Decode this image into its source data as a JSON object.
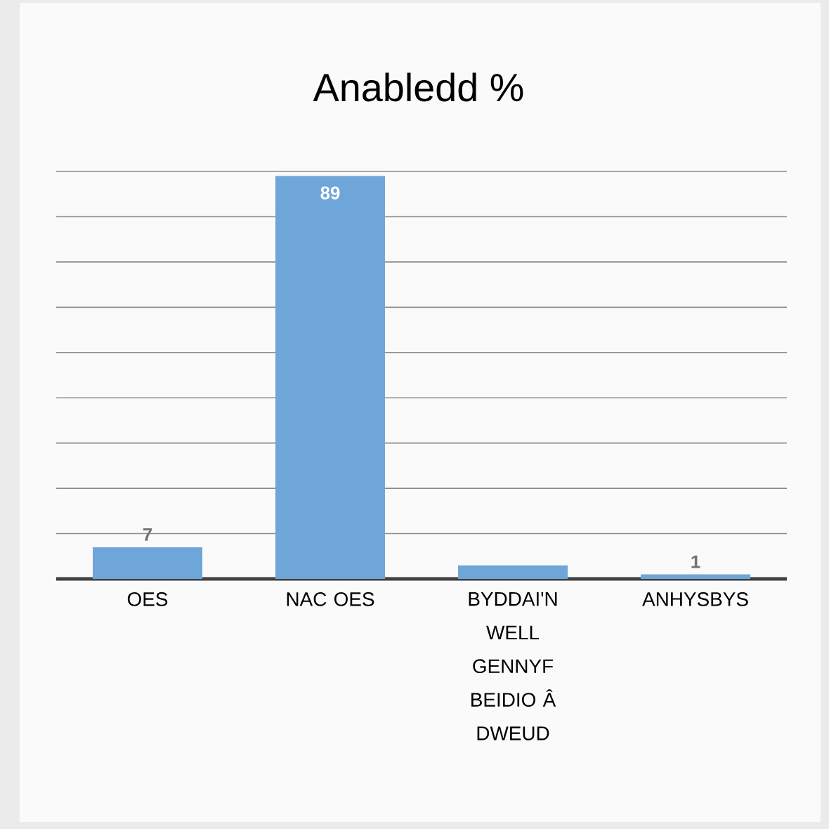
{
  "chart_data": {
    "type": "bar",
    "title": "Anabledd %",
    "categories": [
      "OES",
      "NAC OES",
      "BYDDAI'N WELL GENNYF BEIDIO Â DWEUD",
      "ANHYSBYS"
    ],
    "values": [
      7,
      89,
      3,
      1
    ],
    "value_labels": [
      "7",
      "89",
      null,
      "1"
    ],
    "color": "#6fa6da",
    "ylim": [
      0,
      90
    ],
    "tick_labels": "x",
    "grid": "y"
  }
}
